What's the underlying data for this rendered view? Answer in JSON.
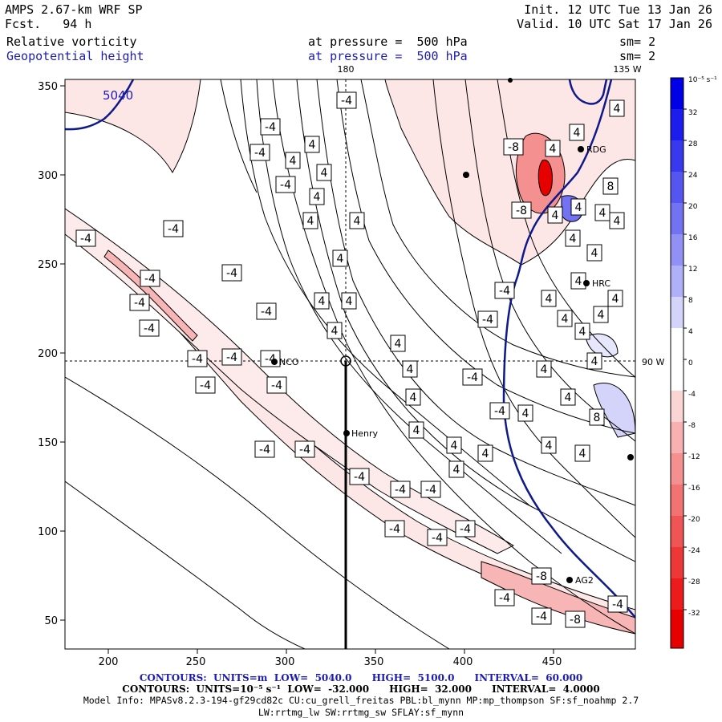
{
  "header": {
    "model": "AMPS 2.67-km WRF SP",
    "forecast": "Fcst.   94 h",
    "init": "Init. 12 UTC Tue 13 Jan 26",
    "valid": "Valid. 10 UTC Sat 17 Jan 26",
    "field1": "Relative vorticity",
    "field1_level": "at pressure =  500 hPa",
    "field1_smooth": "sm= 2",
    "field2": "Geopotential height",
    "field2_level": "at pressure =  500 hPa",
    "field2_smooth": "sm= 2"
  },
  "map": {
    "lon_labels": {
      "top_180": "180",
      "top_135w": "135 W",
      "right_90w": "90 W"
    },
    "x_ticks": [
      "200",
      "250",
      "300",
      "350",
      "400",
      "450"
    ],
    "y_ticks": [
      "350",
      "300",
      "250",
      "200",
      "150",
      "100",
      "50"
    ],
    "height_contour_label": "5040",
    "stations": [
      "NCO",
      "Henry",
      "HRC",
      "RDG",
      "AG2"
    ],
    "contour_label_values": {
      "negative": "-4",
      "positive": "4",
      "negative_strong": "-8",
      "positive_strong": "8"
    }
  },
  "colorbar": {
    "unit": "10⁻⁵ s⁻¹",
    "labels": [
      "32",
      "28",
      "24",
      "20",
      "16",
      "12",
      "8",
      "4",
      "0",
      "-4",
      "-8",
      "-12",
      "-16",
      "-20",
      "-24",
      "-28",
      "-32"
    ],
    "colors": {
      "positive": [
        "#0000e6",
        "#1c1cec",
        "#3838ee",
        "#5555f0",
        "#7272f3",
        "#9090f5",
        "#b0b0f8",
        "#d4d4fb"
      ],
      "negative": [
        "#fbd4d4",
        "#f8b0b0",
        "#f59090",
        "#f37272",
        "#f05555",
        "#ee3838",
        "#ec1c1c",
        "#e60000"
      ]
    }
  },
  "footer": {
    "line1": "CONTOURS:  UNITS=m  LOW=  5040.0      HIGH=  5100.0      INTERVAL=  60.000",
    "line2": "CONTOURS:  UNITS=10⁻⁵ s⁻¹  LOW=  -32.000      HIGH=  32.000      INTERVAL=  4.0000",
    "line3": "Model Info: MPASv8.2.3-194-gf29cd82c CU:cu_grell_freitas PBL:bl_mynn MP:mp_thompson SF:sf_noahmp 2.7",
    "line4": "LW:rrtmg_lw SW:rrtmg_sw SFLAY:sf_mynn"
  }
}
